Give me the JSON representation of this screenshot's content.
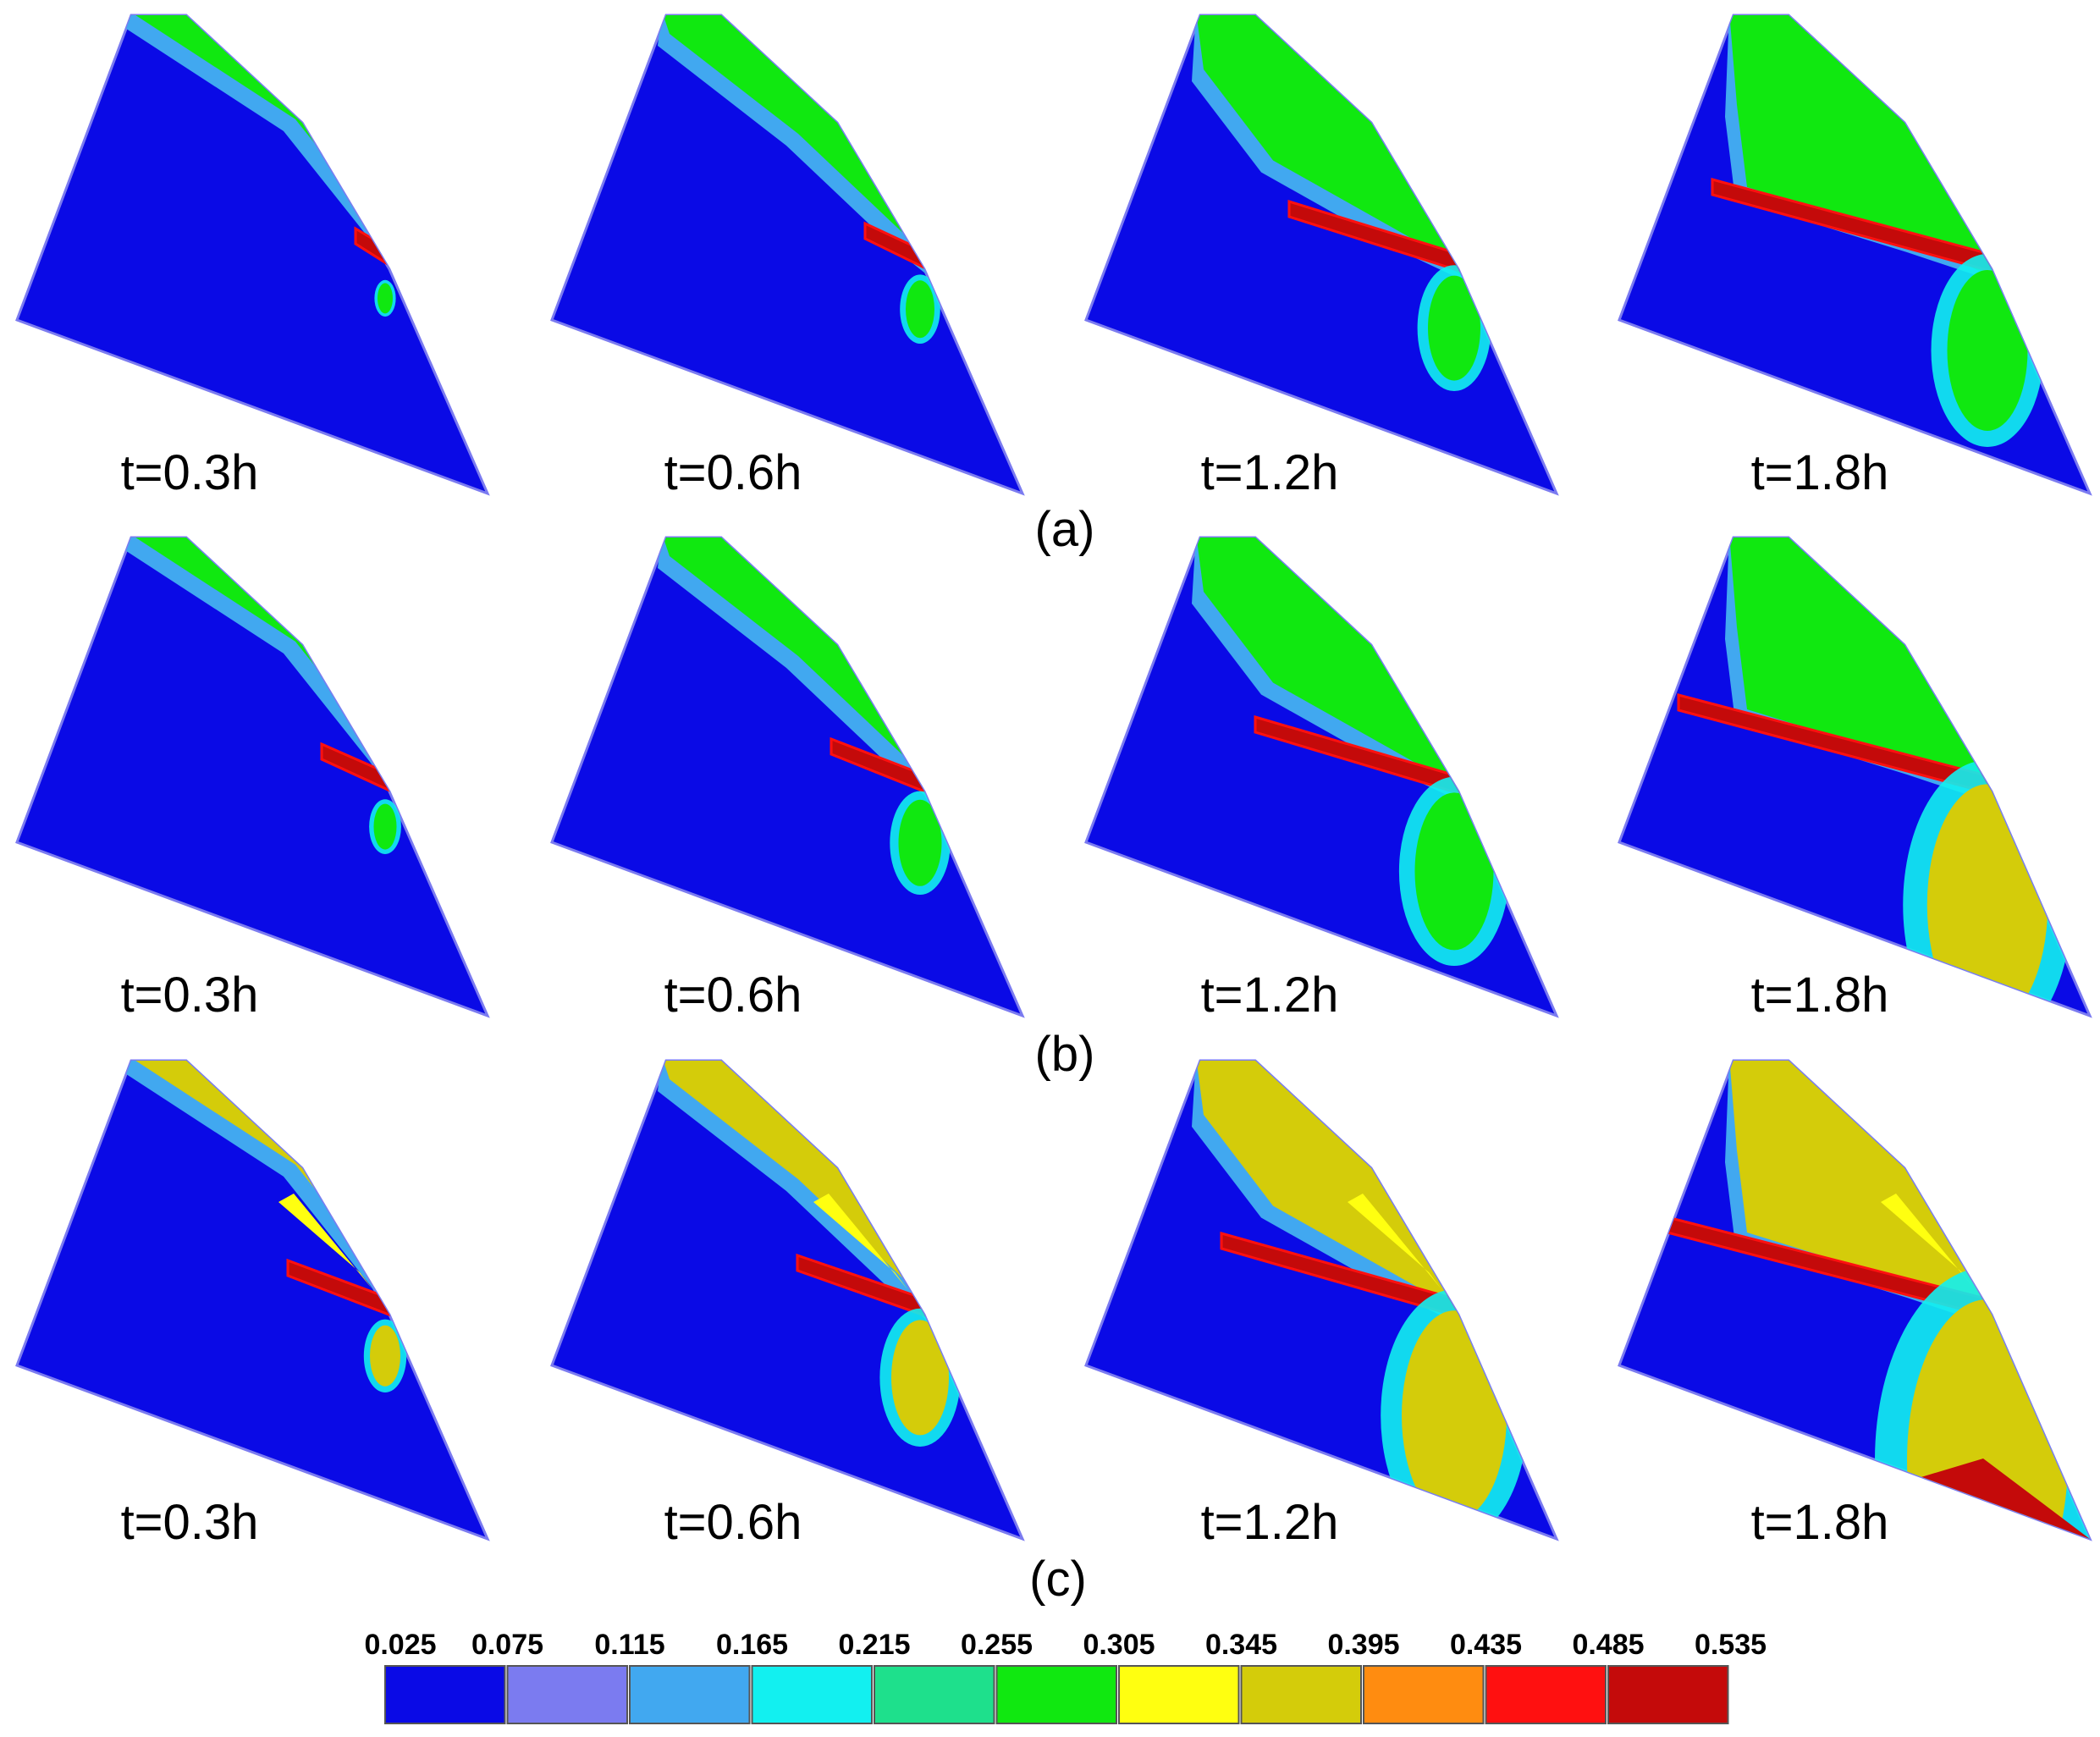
{
  "rows": [
    {
      "label": "(a)",
      "level": 0,
      "panels": [
        {
          "time": "t=0.3h",
          "stage": 0
        },
        {
          "time": "t=0.6h",
          "stage": 1
        },
        {
          "time": "t=1.2h",
          "stage": 2
        },
        {
          "time": "t=1.8h",
          "stage": 3
        }
      ]
    },
    {
      "label": "(b)",
      "level": 1,
      "panels": [
        {
          "time": "t=0.3h",
          "stage": 0
        },
        {
          "time": "t=0.6h",
          "stage": 1
        },
        {
          "time": "t=1.2h",
          "stage": 2
        },
        {
          "time": "t=1.8h",
          "stage": 3
        }
      ]
    },
    {
      "label": "(c)",
      "level": 2,
      "panels": [
        {
          "time": "t=0.3h",
          "stage": 0
        },
        {
          "time": "t=0.6h",
          "stage": 1
        },
        {
          "time": "t=1.2h",
          "stage": 2
        },
        {
          "time": "t=1.8h",
          "stage": 3
        }
      ]
    }
  ],
  "legend": {
    "ticks": [
      "0.025",
      "0.075",
      "0.115",
      "0.165",
      "0.215",
      "0.255",
      "0.305",
      "0.345",
      "0.395",
      "0.435",
      "0.485",
      "0.535"
    ],
    "colors": [
      "#0a0ae6",
      "#7b7bf0",
      "#41a8f0",
      "#12f0f0",
      "#1ee08c",
      "#10e810",
      "#ffff10",
      "#d4cc0a",
      "#ff8c10",
      "#ff1010",
      "#c40a0a"
    ]
  },
  "colors": {
    "background": "#0a0ae6",
    "surface_low": "#10e810",
    "surface_high": "#d4cc0a",
    "band": "#c40a0a",
    "band_edge": "#ff1010",
    "front": "#ffff10"
  }
}
